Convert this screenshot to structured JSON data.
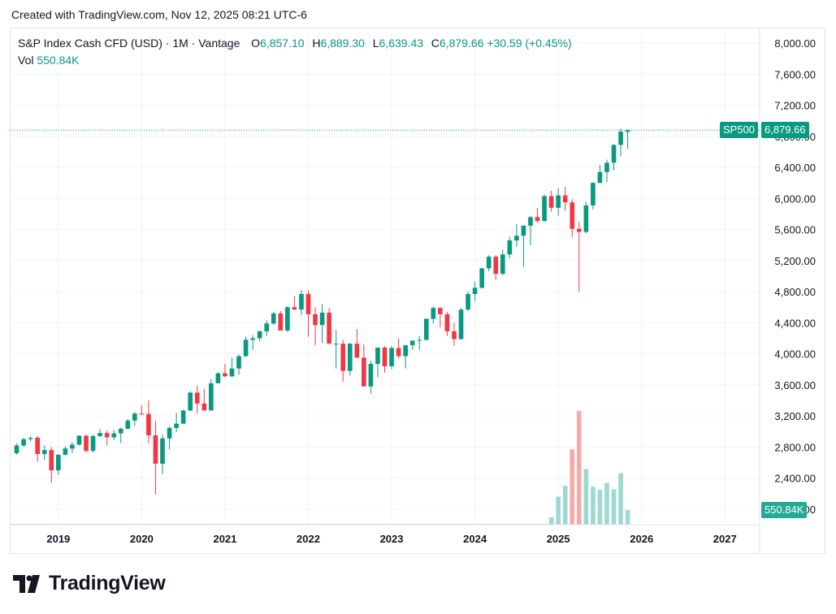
{
  "header": {
    "created_text": "Created with TradingView.com, Nov 12, 2025 08:21 UTC-6"
  },
  "legend": {
    "symbol": "S&P Index Cash CFD (USD) · 1M · Vantage",
    "o_label": "O",
    "o_value": "6,857.10",
    "h_label": "H",
    "h_value": "6,889.30",
    "l_label": "L",
    "l_value": "6,639.43",
    "c_label": "C",
    "c_value": "6,879.66",
    "change": "+30.59 (+0.45%)",
    "vol_label": "Vol",
    "vol_value": "550.84K"
  },
  "price_tag": {
    "ticker": "SP500",
    "value": "6,879.66"
  },
  "volume_tag": {
    "value": "550.84K"
  },
  "brand": {
    "name": "TradingView",
    "logo_icon": "tradingview-logo-icon"
  },
  "colors": {
    "up": "#089981",
    "down": "#f23645",
    "up_volume": "#9dd9d2",
    "down_volume": "#f7a9a7"
  },
  "chart_data": {
    "type": "candlestick",
    "interval": "1M",
    "yaxis": {
      "range": [
        1800,
        8200
      ],
      "ticks": [
        "2,000.00",
        "2,400.00",
        "2,800.00",
        "3,200.00",
        "3,600.00",
        "4,000.00",
        "4,400.00",
        "4,800.00",
        "5,200.00",
        "5,600.00",
        "6,000.00",
        "6,400.00",
        "6,800.00",
        "7,200.00",
        "7,600.00",
        "8,000.00"
      ],
      "tick_values": [
        2000,
        2400,
        2800,
        3200,
        3600,
        4000,
        4400,
        4800,
        5200,
        5600,
        6000,
        6400,
        6800,
        7200,
        7600,
        8000
      ]
    },
    "xaxis": {
      "range": [
        "2018-06",
        "2027-06"
      ],
      "ticks": [
        "2019",
        "2020",
        "2021",
        "2022",
        "2023",
        "2024",
        "2025",
        "2026",
        "2027"
      ],
      "tick_dates": [
        "2019-01",
        "2020-01",
        "2021-01",
        "2022-01",
        "2023-01",
        "2024-01",
        "2025-01",
        "2026-01",
        "2027-01"
      ]
    },
    "grid": true,
    "last_price_line": 6879.66,
    "candles": [
      {
        "d": "2018-07",
        "o": 2720,
        "h": 2850,
        "l": 2700,
        "c": 2820
      },
      {
        "d": "2018-08",
        "o": 2820,
        "h": 2920,
        "l": 2800,
        "c": 2900
      },
      {
        "d": "2018-09",
        "o": 2900,
        "h": 2940,
        "l": 2870,
        "c": 2915
      },
      {
        "d": "2018-10",
        "o": 2920,
        "h": 2940,
        "l": 2610,
        "c": 2710
      },
      {
        "d": "2018-11",
        "o": 2710,
        "h": 2820,
        "l": 2630,
        "c": 2760
      },
      {
        "d": "2018-12",
        "o": 2760,
        "h": 2800,
        "l": 2340,
        "c": 2500
      },
      {
        "d": "2019-01",
        "o": 2500,
        "h": 2710,
        "l": 2440,
        "c": 2700
      },
      {
        "d": "2019-02",
        "o": 2700,
        "h": 2810,
        "l": 2690,
        "c": 2780
      },
      {
        "d": "2019-03",
        "o": 2780,
        "h": 2860,
        "l": 2720,
        "c": 2830
      },
      {
        "d": "2019-04",
        "o": 2830,
        "h": 2950,
        "l": 2820,
        "c": 2945
      },
      {
        "d": "2019-05",
        "o": 2945,
        "h": 2960,
        "l": 2730,
        "c": 2750
      },
      {
        "d": "2019-06",
        "o": 2750,
        "h": 2960,
        "l": 2730,
        "c": 2940
      },
      {
        "d": "2019-07",
        "o": 2940,
        "h": 3030,
        "l": 2930,
        "c": 2980
      },
      {
        "d": "2019-08",
        "o": 2980,
        "h": 3010,
        "l": 2820,
        "c": 2925
      },
      {
        "d": "2019-09",
        "o": 2925,
        "h": 3020,
        "l": 2890,
        "c": 2975
      },
      {
        "d": "2019-10",
        "o": 2975,
        "h": 3050,
        "l": 2850,
        "c": 3035
      },
      {
        "d": "2019-11",
        "o": 3035,
        "h": 3160,
        "l": 3030,
        "c": 3140
      },
      {
        "d": "2019-12",
        "o": 3140,
        "h": 3250,
        "l": 3070,
        "c": 3230
      },
      {
        "d": "2020-01",
        "o": 3230,
        "h": 3340,
        "l": 3210,
        "c": 3225
      },
      {
        "d": "2020-02",
        "o": 3225,
        "h": 3400,
        "l": 2850,
        "c": 2950
      },
      {
        "d": "2020-03",
        "o": 2950,
        "h": 3140,
        "l": 2190,
        "c": 2585
      },
      {
        "d": "2020-04",
        "o": 2585,
        "h": 2960,
        "l": 2450,
        "c": 2910
      },
      {
        "d": "2020-05",
        "o": 2910,
        "h": 3070,
        "l": 2770,
        "c": 3045
      },
      {
        "d": "2020-06",
        "o": 3045,
        "h": 3240,
        "l": 2990,
        "c": 3100
      },
      {
        "d": "2020-07",
        "o": 3100,
        "h": 3280,
        "l": 3100,
        "c": 3270
      },
      {
        "d": "2020-08",
        "o": 3270,
        "h": 3520,
        "l": 3260,
        "c": 3500
      },
      {
        "d": "2020-09",
        "o": 3500,
        "h": 3590,
        "l": 3230,
        "c": 3360
      },
      {
        "d": "2020-10",
        "o": 3360,
        "h": 3550,
        "l": 3270,
        "c": 3270
      },
      {
        "d": "2020-11",
        "o": 3270,
        "h": 3670,
        "l": 3280,
        "c": 3620
      },
      {
        "d": "2020-12",
        "o": 3620,
        "h": 3760,
        "l": 3630,
        "c": 3750
      },
      {
        "d": "2021-01",
        "o": 3750,
        "h": 3870,
        "l": 3700,
        "c": 3710
      },
      {
        "d": "2021-02",
        "o": 3710,
        "h": 3950,
        "l": 3700,
        "c": 3810
      },
      {
        "d": "2021-03",
        "o": 3810,
        "h": 3990,
        "l": 3730,
        "c": 3970
      },
      {
        "d": "2021-04",
        "o": 3970,
        "h": 4220,
        "l": 3960,
        "c": 4180
      },
      {
        "d": "2021-05",
        "o": 4180,
        "h": 4240,
        "l": 4050,
        "c": 4200
      },
      {
        "d": "2021-06",
        "o": 4200,
        "h": 4300,
        "l": 4160,
        "c": 4290
      },
      {
        "d": "2021-07",
        "o": 4290,
        "h": 4430,
        "l": 4230,
        "c": 4390
      },
      {
        "d": "2021-08",
        "o": 4390,
        "h": 4540,
        "l": 4370,
        "c": 4520
      },
      {
        "d": "2021-09",
        "o": 4520,
        "h": 4550,
        "l": 4300,
        "c": 4300
      },
      {
        "d": "2021-10",
        "o": 4300,
        "h": 4610,
        "l": 4280,
        "c": 4600
      },
      {
        "d": "2021-11",
        "o": 4600,
        "h": 4740,
        "l": 4560,
        "c": 4570
      },
      {
        "d": "2021-12",
        "o": 4570,
        "h": 4820,
        "l": 4500,
        "c": 4770
      },
      {
        "d": "2022-01",
        "o": 4770,
        "h": 4820,
        "l": 4220,
        "c": 4510
      },
      {
        "d": "2022-02",
        "o": 4510,
        "h": 4600,
        "l": 4110,
        "c": 4370
      },
      {
        "d": "2022-03",
        "o": 4370,
        "h": 4640,
        "l": 4140,
        "c": 4530
      },
      {
        "d": "2022-04",
        "o": 4530,
        "h": 4590,
        "l": 4130,
        "c": 4130
      },
      {
        "d": "2022-05",
        "o": 4130,
        "h": 4310,
        "l": 3810,
        "c": 4130
      },
      {
        "d": "2022-06",
        "o": 4130,
        "h": 4180,
        "l": 3640,
        "c": 3780
      },
      {
        "d": "2022-07",
        "o": 3780,
        "h": 4140,
        "l": 3720,
        "c": 4130
      },
      {
        "d": "2022-08",
        "o": 4130,
        "h": 4320,
        "l": 3950,
        "c": 3950
      },
      {
        "d": "2022-09",
        "o": 3950,
        "h": 4120,
        "l": 3580,
        "c": 3580
      },
      {
        "d": "2022-10",
        "o": 3580,
        "h": 3910,
        "l": 3490,
        "c": 3870
      },
      {
        "d": "2022-11",
        "o": 3870,
        "h": 4080,
        "l": 3700,
        "c": 4080
      },
      {
        "d": "2022-12",
        "o": 4080,
        "h": 4100,
        "l": 3760,
        "c": 3840
      },
      {
        "d": "2023-01",
        "o": 3840,
        "h": 4100,
        "l": 3800,
        "c": 4075
      },
      {
        "d": "2023-02",
        "o": 4075,
        "h": 4200,
        "l": 3940,
        "c": 3970
      },
      {
        "d": "2023-03",
        "o": 3970,
        "h": 4110,
        "l": 3810,
        "c": 4110
      },
      {
        "d": "2023-04",
        "o": 4110,
        "h": 4170,
        "l": 4050,
        "c": 4170
      },
      {
        "d": "2023-05",
        "o": 4170,
        "h": 4230,
        "l": 4050,
        "c": 4180
      },
      {
        "d": "2023-06",
        "o": 4180,
        "h": 4460,
        "l": 4170,
        "c": 4450
      },
      {
        "d": "2023-07",
        "o": 4450,
        "h": 4610,
        "l": 4390,
        "c": 4590
      },
      {
        "d": "2023-08",
        "o": 4590,
        "h": 4600,
        "l": 4340,
        "c": 4510
      },
      {
        "d": "2023-09",
        "o": 4510,
        "h": 4540,
        "l": 4230,
        "c": 4290
      },
      {
        "d": "2023-10",
        "o": 4290,
        "h": 4400,
        "l": 4100,
        "c": 4190
      },
      {
        "d": "2023-11",
        "o": 4190,
        "h": 4590,
        "l": 4180,
        "c": 4570
      },
      {
        "d": "2023-12",
        "o": 4570,
        "h": 4800,
        "l": 4550,
        "c": 4770
      },
      {
        "d": "2024-01",
        "o": 4770,
        "h": 4930,
        "l": 4680,
        "c": 4850
      },
      {
        "d": "2024-02",
        "o": 4850,
        "h": 5110,
        "l": 4840,
        "c": 5100
      },
      {
        "d": "2024-03",
        "o": 5100,
        "h": 5270,
        "l": 5060,
        "c": 5250
      },
      {
        "d": "2024-04",
        "o": 5250,
        "h": 5270,
        "l": 4950,
        "c": 5030
      },
      {
        "d": "2024-05",
        "o": 5030,
        "h": 5340,
        "l": 5010,
        "c": 5280
      },
      {
        "d": "2024-06",
        "o": 5280,
        "h": 5510,
        "l": 5230,
        "c": 5460
      },
      {
        "d": "2024-07",
        "o": 5460,
        "h": 5670,
        "l": 5380,
        "c": 5520
      },
      {
        "d": "2024-08",
        "o": 5520,
        "h": 5650,
        "l": 5120,
        "c": 5650
      },
      {
        "d": "2024-09",
        "o": 5650,
        "h": 5770,
        "l": 5400,
        "c": 5760
      },
      {
        "d": "2024-10",
        "o": 5760,
        "h": 5880,
        "l": 5690,
        "c": 5710
      },
      {
        "d": "2024-11",
        "o": 5710,
        "h": 6050,
        "l": 5700,
        "c": 6030
      },
      {
        "d": "2024-12",
        "o": 6030,
        "h": 6100,
        "l": 5830,
        "c": 5880
      },
      {
        "d": "2025-01",
        "o": 5880,
        "h": 6130,
        "l": 5780,
        "c": 6040
      },
      {
        "d": "2025-02",
        "o": 6040,
        "h": 6150,
        "l": 5840,
        "c": 5950
      },
      {
        "d": "2025-03",
        "o": 5950,
        "h": 5990,
        "l": 5500,
        "c": 5610
      },
      {
        "d": "2025-04",
        "o": 5610,
        "h": 5700,
        "l": 4800,
        "c": 5570
      },
      {
        "d": "2025-05",
        "o": 5570,
        "h": 5960,
        "l": 5550,
        "c": 5910
      },
      {
        "d": "2025-06",
        "o": 5910,
        "h": 6210,
        "l": 5860,
        "c": 6200
      },
      {
        "d": "2025-07",
        "o": 6200,
        "h": 6430,
        "l": 6200,
        "c": 6340
      },
      {
        "d": "2025-08",
        "o": 6340,
        "h": 6500,
        "l": 6210,
        "c": 6460
      },
      {
        "d": "2025-09",
        "o": 6460,
        "h": 6700,
        "l": 6360,
        "c": 6690
      },
      {
        "d": "2025-10",
        "o": 6690,
        "h": 6900,
        "l": 6540,
        "c": 6860
      },
      {
        "d": "2025-11",
        "o": 6857.1,
        "h": 6889.3,
        "l": 6639.43,
        "c": 6879.66
      }
    ],
    "volume": [
      {
        "d": "2024-12",
        "v": 280,
        "dir": "up"
      },
      {
        "d": "2025-01",
        "v": 1050,
        "dir": "up"
      },
      {
        "d": "2025-02",
        "v": 1450,
        "dir": "up"
      },
      {
        "d": "2025-03",
        "v": 2810,
        "dir": "down"
      },
      {
        "d": "2025-04",
        "v": 4250,
        "dir": "down"
      },
      {
        "d": "2025-05",
        "v": 2080,
        "dir": "up"
      },
      {
        "d": "2025-06",
        "v": 1420,
        "dir": "up"
      },
      {
        "d": "2025-07",
        "v": 1300,
        "dir": "up"
      },
      {
        "d": "2025-08",
        "v": 1560,
        "dir": "up"
      },
      {
        "d": "2025-09",
        "v": 1320,
        "dir": "up"
      },
      {
        "d": "2025-10",
        "v": 1930,
        "dir": "up"
      },
      {
        "d": "2025-11",
        "v": 550.84,
        "dir": "up"
      }
    ],
    "volume_unit": "K"
  }
}
